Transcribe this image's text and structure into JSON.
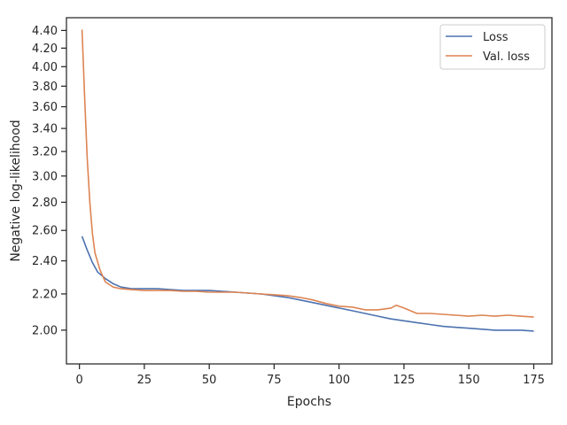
{
  "chart_data": {
    "type": "line",
    "xlabel": "Epochs",
    "ylabel": "Negative log-likelihood",
    "xlim": [
      -5,
      182
    ],
    "ylim": [
      1.83,
      4.55
    ],
    "y_scale": "log",
    "x_ticks": [
      0,
      25,
      50,
      75,
      100,
      125,
      150,
      175
    ],
    "y_ticks": [
      2.0,
      2.2,
      2.4,
      2.6,
      2.8,
      3.0,
      3.2,
      3.4,
      3.6,
      3.8,
      4.0,
      4.2,
      4.4
    ],
    "y_tick_labels": [
      "2.00",
      "2.20",
      "2.40",
      "2.60",
      "2.80",
      "3.00",
      "3.20",
      "3.40",
      "3.60",
      "3.80",
      "4.00",
      "4.20",
      "4.40"
    ],
    "grid": false,
    "legend_position": "top-right",
    "series": [
      {
        "name": "Loss",
        "color": "#4c72b0",
        "points": [
          [
            1,
            2.56
          ],
          [
            3,
            2.47
          ],
          [
            5,
            2.39
          ],
          [
            7,
            2.33
          ],
          [
            10,
            2.29
          ],
          [
            13,
            2.26
          ],
          [
            16,
            2.24
          ],
          [
            20,
            2.23
          ],
          [
            25,
            2.23
          ],
          [
            30,
            2.23
          ],
          [
            35,
            2.225
          ],
          [
            40,
            2.22
          ],
          [
            45,
            2.22
          ],
          [
            50,
            2.22
          ],
          [
            55,
            2.215
          ],
          [
            60,
            2.21
          ],
          [
            65,
            2.205
          ],
          [
            70,
            2.2
          ],
          [
            75,
            2.19
          ],
          [
            80,
            2.18
          ],
          [
            85,
            2.165
          ],
          [
            90,
            2.15
          ],
          [
            95,
            2.135
          ],
          [
            100,
            2.12
          ],
          [
            105,
            2.105
          ],
          [
            110,
            2.09
          ],
          [
            115,
            2.075
          ],
          [
            120,
            2.06
          ],
          [
            125,
            2.05
          ],
          [
            130,
            2.04
          ],
          [
            135,
            2.03
          ],
          [
            140,
            2.02
          ],
          [
            145,
            2.015
          ],
          [
            150,
            2.01
          ],
          [
            155,
            2.005
          ],
          [
            160,
            2.0
          ],
          [
            165,
            2.0
          ],
          [
            170,
            2.0
          ],
          [
            175,
            1.995
          ]
        ]
      },
      {
        "name": "Val. loss",
        "color": "#dd8452",
        "points": [
          [
            1,
            4.41
          ],
          [
            2,
            3.7
          ],
          [
            3,
            3.15
          ],
          [
            4,
            2.8
          ],
          [
            5,
            2.58
          ],
          [
            6,
            2.45
          ],
          [
            8,
            2.34
          ],
          [
            10,
            2.27
          ],
          [
            13,
            2.24
          ],
          [
            16,
            2.23
          ],
          [
            20,
            2.225
          ],
          [
            25,
            2.22
          ],
          [
            30,
            2.22
          ],
          [
            35,
            2.22
          ],
          [
            40,
            2.215
          ],
          [
            45,
            2.215
          ],
          [
            50,
            2.21
          ],
          [
            55,
            2.21
          ],
          [
            60,
            2.21
          ],
          [
            65,
            2.205
          ],
          [
            70,
            2.2
          ],
          [
            75,
            2.195
          ],
          [
            80,
            2.19
          ],
          [
            85,
            2.18
          ],
          [
            90,
            2.165
          ],
          [
            95,
            2.145
          ],
          [
            100,
            2.13
          ],
          [
            105,
            2.125
          ],
          [
            110,
            2.11
          ],
          [
            115,
            2.11
          ],
          [
            120,
            2.12
          ],
          [
            122,
            2.135
          ],
          [
            125,
            2.12
          ],
          [
            130,
            2.09
          ],
          [
            135,
            2.09
          ],
          [
            140,
            2.085
          ],
          [
            145,
            2.08
          ],
          [
            150,
            2.075
          ],
          [
            155,
            2.08
          ],
          [
            160,
            2.075
          ],
          [
            165,
            2.08
          ],
          [
            170,
            2.075
          ],
          [
            175,
            2.07
          ]
        ]
      }
    ]
  }
}
